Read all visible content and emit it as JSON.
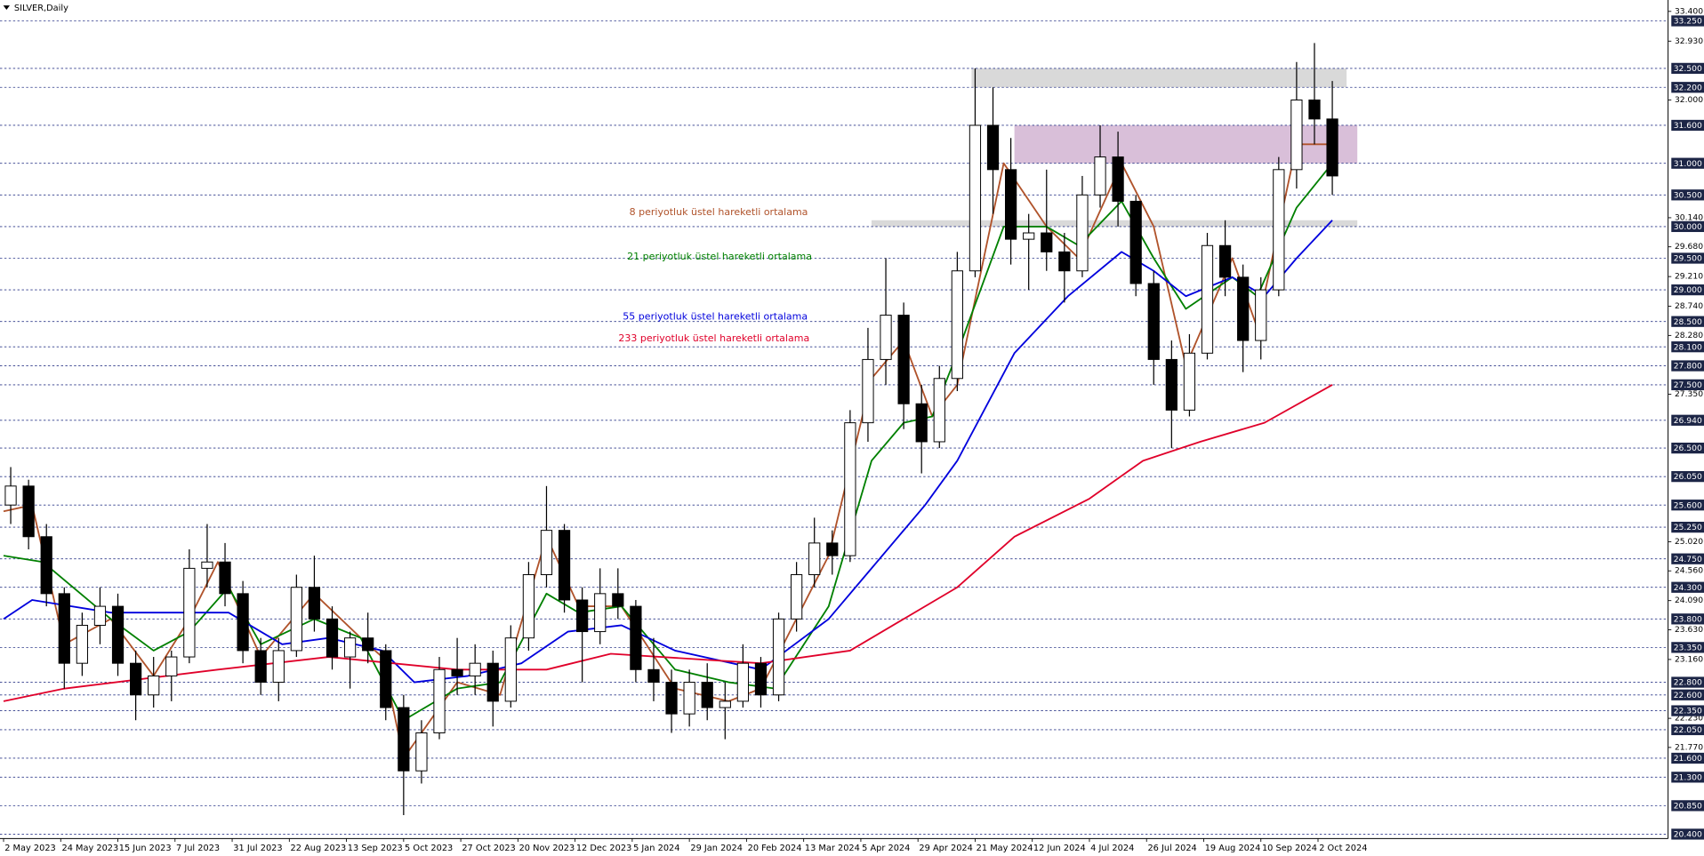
{
  "chart_data": {
    "type": "candlestick",
    "title": "SILVER,Daily",
    "xlim": [
      -1,
      466
    ],
    "ylim": [
      20.33,
      33.58
    ],
    "xticks": [
      {
        "value": 0,
        "label": "2 May 2023"
      },
      {
        "value": 16,
        "label": "24 May 2023"
      },
      {
        "value": 32,
        "label": "15 Jun 2023"
      },
      {
        "value": 48,
        "label": "7 Jul 2023"
      },
      {
        "value": 64,
        "label": "31 Jul 2023"
      },
      {
        "value": 80,
        "label": "22 Aug 2023"
      },
      {
        "value": 96,
        "label": "13 Sep 2023"
      },
      {
        "value": 112,
        "label": "5 Oct 2023"
      },
      {
        "value": 128,
        "label": "27 Oct 2023"
      },
      {
        "value": 144,
        "label": "20 Nov 2023"
      },
      {
        "value": 160,
        "label": "12 Dec 2023"
      },
      {
        "value": 176,
        "label": "5 Jan 2024"
      },
      {
        "value": 192,
        "label": "29 Jan 2024"
      },
      {
        "value": 208,
        "label": "20 Feb 2024"
      },
      {
        "value": 224,
        "label": "13 Mar 2024"
      },
      {
        "value": 240,
        "label": "5 Apr 2024"
      },
      {
        "value": 256,
        "label": "29 Apr 2024"
      },
      {
        "value": 272,
        "label": "21 May 2024"
      },
      {
        "value": 288,
        "label": "12 Jun 2024"
      },
      {
        "value": 304,
        "label": "4 Jul 2024"
      },
      {
        "value": 320,
        "label": "26 Jul 2024"
      },
      {
        "value": 336,
        "label": "19 Aug 2024"
      },
      {
        "value": 352,
        "label": "10 Sep 2024"
      },
      {
        "value": 368,
        "label": "2 Oct 2024"
      }
    ],
    "yticks": [
      {
        "value": 33.4,
        "label": "33.400"
      },
      {
        "value": 32.93,
        "label": "32.930"
      },
      {
        "value": 32.0,
        "label": "32.000"
      },
      {
        "value": 30.14,
        "label": "30.140"
      },
      {
        "value": 29.68,
        "label": "29.680"
      },
      {
        "value": 29.21,
        "label": "29.210"
      },
      {
        "value": 28.74,
        "label": "28.740"
      },
      {
        "value": 28.28,
        "label": "28.280"
      },
      {
        "value": 27.35,
        "label": "27.350"
      },
      {
        "value": 25.02,
        "label": "25.020"
      },
      {
        "value": 24.56,
        "label": "24.560"
      },
      {
        "value": 24.09,
        "label": "24.090"
      },
      {
        "value": 23.63,
        "label": "23.630"
      },
      {
        "value": 23.16,
        "label": "23.160"
      },
      {
        "value": 22.23,
        "label": "22.230"
      },
      {
        "value": 21.77,
        "label": "21.770"
      }
    ],
    "levels": [
      {
        "value": 33.25,
        "label": "33.250"
      },
      {
        "value": 32.5,
        "label": "32.500"
      },
      {
        "value": 32.2,
        "label": "32.200"
      },
      {
        "value": 31.6,
        "label": "31.600"
      },
      {
        "value": 31.0,
        "label": "31.000"
      },
      {
        "value": 30.5,
        "label": "30.500"
      },
      {
        "value": 30.0,
        "label": "30.000"
      },
      {
        "value": 29.5,
        "label": "29.500"
      },
      {
        "value": 29.0,
        "label": "29.000"
      },
      {
        "value": 28.5,
        "label": "28.500"
      },
      {
        "value": 28.1,
        "label": "28.100"
      },
      {
        "value": 27.8,
        "label": "27.800"
      },
      {
        "value": 27.5,
        "label": "27.500"
      },
      {
        "value": 26.94,
        "label": "26.940"
      },
      {
        "value": 26.5,
        "label": "26.500"
      },
      {
        "value": 26.05,
        "label": "26.050"
      },
      {
        "value": 25.6,
        "label": "25.600"
      },
      {
        "value": 25.25,
        "label": "25.250"
      },
      {
        "value": 24.75,
        "label": "24.750"
      },
      {
        "value": 24.3,
        "label": "24.300"
      },
      {
        "value": 23.8,
        "label": "23.800"
      },
      {
        "value": 23.35,
        "label": "23.350"
      },
      {
        "value": 22.8,
        "label": "22.800"
      },
      {
        "value": 22.6,
        "label": "22.600"
      },
      {
        "value": 22.35,
        "label": "22.350"
      },
      {
        "value": 22.05,
        "label": "22.050"
      },
      {
        "value": 21.6,
        "label": "21.600"
      },
      {
        "value": 21.3,
        "label": "21.300"
      },
      {
        "value": 20.85,
        "label": "20.850"
      },
      {
        "value": 20.4,
        "label": "20.400"
      }
    ],
    "zones": [
      {
        "from": 30.0,
        "to": 30.1,
        "x_start": 243,
        "x_end": 379,
        "color": "#d9d9d9"
      },
      {
        "from": 32.2,
        "to": 32.5,
        "x_start": 271,
        "x_end": 376,
        "color": "#d9d9d9"
      },
      {
        "from": 31.0,
        "to": 31.6,
        "x_start": 283,
        "x_end": 379,
        "color": "#d9bfd9"
      }
    ],
    "candles": {
      "x": [
        2,
        7,
        12,
        17,
        22,
        27,
        32,
        37,
        42,
        47,
        52,
        57,
        62,
        67,
        72,
        77,
        82,
        87,
        92,
        97,
        102,
        107,
        112,
        117,
        122,
        127,
        132,
        137,
        142,
        147,
        152,
        157,
        162,
        167,
        172,
        177,
        182,
        187,
        192,
        197,
        202,
        207,
        212,
        217,
        222,
        227,
        232,
        237,
        242,
        247,
        252,
        257,
        262,
        267,
        272,
        277,
        282,
        287,
        292,
        297,
        302,
        307,
        312,
        317,
        322,
        327,
        332,
        337,
        342,
        347,
        352,
        357,
        362,
        367,
        372
      ],
      "open": [
        25.6,
        25.9,
        25.1,
        24.2,
        23.1,
        23.7,
        24.0,
        23.1,
        22.6,
        22.9,
        23.2,
        24.6,
        24.7,
        24.2,
        23.3,
        22.8,
        23.3,
        24.3,
        23.8,
        23.2,
        23.5,
        23.3,
        22.4,
        21.4,
        22.0,
        23.0,
        22.9,
        23.1,
        22.5,
        23.5,
        24.5,
        25.2,
        24.1,
        23.6,
        24.2,
        24.0,
        23.0,
        22.8,
        22.3,
        22.8,
        22.4,
        22.5,
        23.1,
        22.6,
        23.8,
        24.5,
        25.0,
        24.8,
        26.9,
        27.9,
        28.6,
        27.2,
        26.6,
        27.6,
        29.3,
        31.6,
        30.9,
        29.8,
        29.9,
        29.6,
        29.3,
        30.5,
        31.1,
        30.4,
        29.1,
        27.9,
        27.1,
        28.0,
        29.7,
        29.2,
        28.2,
        29.0,
        30.9,
        32.0,
        31.7
      ],
      "high": [
        26.2,
        26.0,
        25.3,
        24.3,
        23.9,
        24.3,
        24.2,
        23.3,
        23.2,
        23.3,
        24.9,
        25.3,
        25.0,
        24.4,
        23.5,
        23.5,
        24.5,
        24.8,
        24.0,
        23.6,
        23.9,
        23.4,
        22.6,
        22.2,
        23.2,
        23.5,
        23.4,
        23.3,
        23.7,
        24.7,
        25.9,
        25.3,
        24.3,
        24.6,
        24.6,
        24.1,
        23.5,
        23.0,
        23.0,
        23.1,
        22.8,
        23.4,
        23.2,
        23.9,
        24.7,
        25.4,
        25.2,
        27.1,
        28.4,
        29.5,
        28.8,
        27.5,
        27.8,
        29.6,
        32.5,
        32.2,
        31.4,
        30.2,
        30.9,
        29.9,
        30.8,
        31.6,
        31.5,
        30.5,
        29.3,
        28.2,
        28.3,
        29.9,
        30.1,
        29.4,
        29.2,
        31.1,
        32.6,
        32.9,
        32.3
      ],
      "low": [
        25.3,
        24.9,
        24.0,
        22.7,
        22.9,
        23.4,
        22.9,
        22.2,
        22.4,
        22.5,
        23.1,
        24.3,
        24.0,
        23.1,
        22.6,
        22.5,
        23.2,
        23.6,
        23.0,
        22.7,
        23.1,
        22.2,
        20.7,
        21.2,
        21.9,
        22.6,
        22.6,
        22.1,
        22.4,
        23.3,
        24.3,
        23.9,
        22.8,
        23.4,
        23.8,
        22.8,
        22.5,
        22.0,
        22.1,
        22.2,
        21.9,
        22.4,
        22.4,
        22.5,
        23.6,
        24.3,
        24.5,
        24.7,
        26.6,
        27.5,
        26.8,
        26.1,
        26.5,
        27.4,
        29.2,
        30.2,
        29.4,
        29.0,
        29.3,
        28.8,
        29.2,
        30.3,
        30.0,
        28.9,
        27.5,
        26.5,
        27.0,
        27.9,
        28.9,
        27.7,
        27.9,
        28.9,
        30.6,
        31.3,
        30.5
      ],
      "close": [
        25.9,
        25.1,
        24.2,
        23.1,
        23.7,
        24.0,
        23.1,
        22.6,
        22.9,
        23.2,
        24.6,
        24.7,
        24.2,
        23.3,
        22.8,
        23.3,
        24.3,
        23.8,
        23.2,
        23.5,
        23.3,
        22.4,
        21.4,
        22.0,
        23.0,
        22.9,
        23.1,
        22.5,
        23.5,
        24.5,
        25.2,
        24.1,
        23.6,
        24.2,
        24.0,
        23.0,
        22.8,
        22.3,
        22.8,
        22.4,
        22.5,
        23.1,
        22.6,
        23.8,
        24.5,
        25.0,
        24.8,
        26.9,
        27.9,
        28.6,
        27.2,
        26.6,
        27.6,
        29.3,
        31.6,
        30.9,
        29.8,
        29.9,
        29.6,
        29.3,
        30.5,
        31.1,
        30.4,
        29.1,
        27.9,
        27.1,
        28.0,
        29.7,
        29.2,
        28.2,
        29.0,
        30.9,
        32.0,
        31.7,
        30.8
      ]
    },
    "series": [
      {
        "name": "8 periyotluk üstel hareketli ortalama",
        "color": "#b0532b",
        "x": [
          0,
          8,
          17,
          30,
          42,
          52,
          60,
          72,
          87,
          100,
          106,
          112,
          127,
          139,
          152,
          161,
          173,
          188,
          203,
          212,
          231,
          243,
          252,
          260,
          267,
          280,
          292,
          301,
          313,
          322,
          331,
          344,
          351,
          362,
          372
        ],
        "values": [
          25.5,
          25.6,
          23.4,
          23.8,
          22.9,
          23.8,
          24.7,
          23.2,
          24.2,
          23.5,
          23.2,
          21.6,
          22.8,
          22.6,
          25.1,
          24.0,
          24.0,
          22.7,
          22.5,
          22.7,
          24.8,
          27.6,
          28.2,
          27.0,
          27.5,
          31.0,
          30.0,
          29.5,
          31.0,
          30.0,
          27.8,
          29.5,
          28.4,
          31.3,
          31.3
        ]
      },
      {
        "name": "21 periyotluk üstel hareketli ortalama",
        "color": "#008000",
        "x": [
          0,
          11,
          30,
          42,
          52,
          63,
          72,
          87,
          100,
          112,
          127,
          139,
          152,
          161,
          173,
          188,
          203,
          216,
          231,
          243,
          252,
          260,
          267,
          280,
          292,
          301,
          313,
          322,
          331,
          344,
          351,
          362,
          372
        ],
        "values": [
          24.8,
          24.7,
          23.8,
          23.3,
          23.6,
          24.3,
          23.4,
          23.8,
          23.5,
          22.2,
          22.7,
          22.8,
          24.2,
          23.9,
          24.0,
          23.0,
          22.8,
          22.7,
          24.0,
          26.3,
          26.9,
          27.0,
          28.0,
          30.0,
          30.0,
          29.7,
          30.4,
          29.5,
          28.7,
          29.2,
          28.9,
          30.3,
          31.0
        ]
      },
      {
        "name": "55 periyotluk üstel hareketli ortalama",
        "color": "#0000dd",
        "x": [
          0,
          8,
          30,
          45,
          63,
          78,
          91,
          106,
          115,
          130,
          145,
          158,
          173,
          188,
          212,
          231,
          243,
          258,
          267,
          283,
          298,
          313,
          322,
          331,
          344,
          353,
          362,
          372
        ],
        "values": [
          23.8,
          24.1,
          23.9,
          23.9,
          23.9,
          23.4,
          23.5,
          23.3,
          22.8,
          22.9,
          23.1,
          23.6,
          23.7,
          23.3,
          23.0,
          23.8,
          24.6,
          25.6,
          26.3,
          28.0,
          28.9,
          29.6,
          29.3,
          28.9,
          29.2,
          28.9,
          29.5,
          30.1
        ]
      },
      {
        "name": "233 periyotluk üstel hareketli ortalama",
        "color": "#e0002a",
        "x": [
          0,
          17,
          60,
          91,
          127,
          152,
          170,
          212,
          237,
          252,
          267,
          283,
          304,
          319,
          335,
          353,
          372
        ],
        "values": [
          22.5,
          22.7,
          23.0,
          23.2,
          23.0,
          23.0,
          23.25,
          23.1,
          23.3,
          23.8,
          24.3,
          25.1,
          25.7,
          26.3,
          26.6,
          26.9,
          27.5
        ]
      }
    ]
  }
}
